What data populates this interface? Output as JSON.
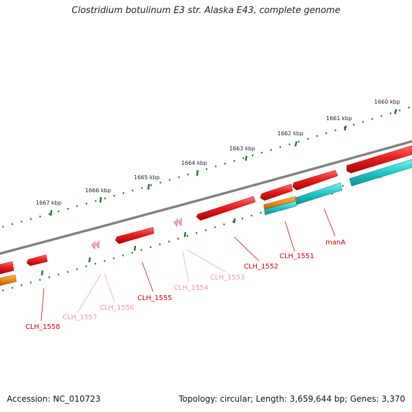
{
  "title": "Clostridium botulinum E3 str. Alaska E43, complete genome",
  "footer": {
    "accession": "Accession: NC_010723",
    "summary": "Topology: circular; Length: 3,659,644 bp; Genes: 3,370"
  },
  "colors": {
    "backbone": "#808080",
    "ticks": "#1e7a1e",
    "cds": "#e8141c",
    "rna": "#f08020",
    "protein": "#20c8cc",
    "pseudo": "#f0a0c8",
    "label_cds": "#cc0000",
    "label_pseudo": "#f090b8"
  },
  "scale_labels": [
    "1660 kbp",
    "1661 kbp",
    "1662 kbp",
    "1663 kbp",
    "1664 kbp",
    "1665 kbp",
    "1666 kbp",
    "1667 kbp"
  ],
  "gene_labels": [
    {
      "text": "manA",
      "kind": "cds"
    },
    {
      "text": "CLH_1551",
      "kind": "cds"
    },
    {
      "text": "CLH_1552",
      "kind": "cds"
    },
    {
      "text": "CLH_1553",
      "kind": "pseudo"
    },
    {
      "text": "CLH_1554",
      "kind": "pseudo"
    },
    {
      "text": "CLH_1555",
      "kind": "cds"
    },
    {
      "text": "CLH_1556",
      "kind": "pseudo"
    },
    {
      "text": "CLH_1557",
      "kind": "pseudo"
    },
    {
      "text": "CLH_1558",
      "kind": "cds"
    }
  ]
}
